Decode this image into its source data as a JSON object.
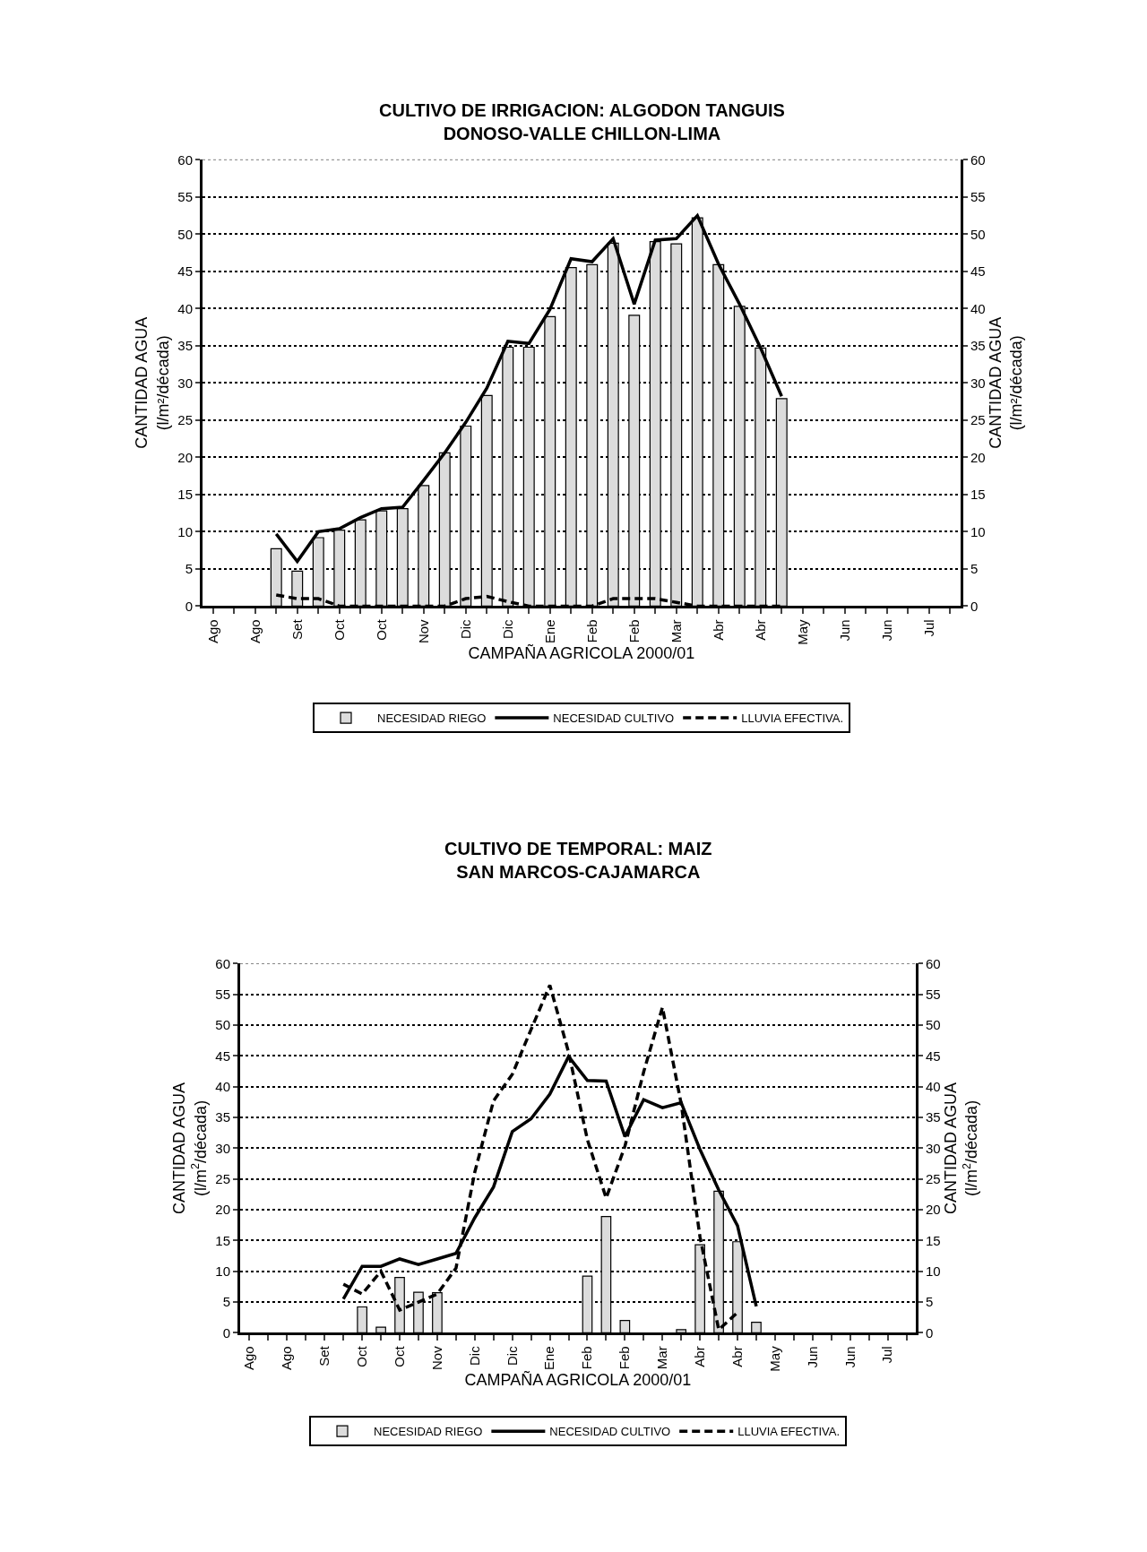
{
  "chart_data": [
    {
      "type": "bar",
      "title": "CULTIVO DE IRRIGACION: ALGODON TANGUIS\nDONOSO-VALLE CHILLON-LIMA",
      "xlabel": "CAMPAÑA AGRICOLA 2000/01",
      "ylabel": "CANTIDAD AGUA\n(l/m²/década)",
      "y2label": "CANTIDAD AGUA\n(l/m²/década)",
      "categories": [
        "Ago",
        null,
        "Ago",
        null,
        "Set",
        null,
        "Oct",
        null,
        "Oct",
        null,
        "Nov",
        null,
        "Dic",
        null,
        "Dic",
        null,
        "Ene",
        null,
        "Feb",
        null,
        "Feb",
        null,
        "Mar",
        null,
        "Abr",
        null,
        "Abr",
        null,
        "May",
        null,
        "Jun",
        null,
        "Jun",
        null,
        "Jul",
        null
      ],
      "series": [
        {
          "name": "NECESIDAD RIEGO",
          "color": "#dcdcdc",
          "values": [
            null,
            null,
            null,
            7.7,
            4.7,
            9.2,
            10.2,
            11.6,
            12.8,
            13.1,
            16.2,
            20.6,
            24.2,
            28.3,
            34.8,
            34.8,
            38.9,
            45.5,
            45.9,
            48.8,
            39.1,
            49.0,
            48.7,
            52.2,
            45.9,
            40.3,
            34.7,
            27.9,
            null,
            null,
            null,
            null,
            null,
            null,
            null,
            null
          ]
        },
        {
          "name": "NECESIDAD CULTIVO",
          "type": "line",
          "color": "#000000",
          "line_style": "solid",
          "values": [
            null,
            null,
            null,
            9.7,
            6.0,
            10.0,
            10.4,
            11.9,
            13.1,
            13.3,
            16.9,
            20.6,
            24.7,
            29.3,
            35.6,
            35.3,
            39.9,
            46.7,
            46.3,
            49.4,
            40.6,
            49.2,
            49.4,
            52.5,
            46.0,
            40.6,
            34.7,
            28.2,
            null,
            null,
            null,
            null,
            null,
            null,
            null,
            null
          ]
        },
        {
          "name": "LLUVIA EFECTIVA.",
          "type": "line",
          "color": "#000000",
          "line_style": "dashed",
          "values": [
            null,
            null,
            null,
            1.5,
            1.0,
            1.0,
            0,
            0,
            0,
            0,
            0,
            0,
            1.0,
            1.3,
            0.6,
            0,
            0,
            0,
            0,
            1.0,
            1.0,
            1.0,
            0.5,
            0,
            0,
            0,
            0,
            0,
            null,
            null,
            null,
            null,
            null,
            null,
            null,
            null
          ]
        }
      ],
      "ylim": [
        0,
        60
      ],
      "yticks": [
        0,
        5,
        10,
        15,
        20,
        25,
        30,
        35,
        40,
        45,
        50,
        55,
        60
      ],
      "y2lim": [
        0,
        60
      ],
      "y2ticks": [
        0,
        5,
        10,
        15,
        20,
        25,
        30,
        35,
        40,
        45,
        50,
        55,
        60
      ],
      "grid": "y",
      "legend": "bottom"
    },
    {
      "type": "bar",
      "title": "CULTIVO DE TEMPORAL: MAIZ\nSAN MARCOS-CAJAMARCA",
      "xlabel": "CAMPAÑA AGRICOLA 2000/01",
      "ylabel": "CANTIDAD AGUA\n(l/m$^{2}$/década)",
      "y2label": "CANTIDAD AGUA\n(l/m$^{2}$/década)",
      "categories": [
        "Ago",
        null,
        "Ago",
        null,
        "Set",
        null,
        "Oct",
        null,
        "Oct",
        null,
        "Nov",
        null,
        "Dic",
        null,
        "Dic",
        null,
        "Ene",
        null,
        "Feb",
        null,
        "Feb",
        null,
        "Mar",
        null,
        "Abr",
        null,
        "Abr",
        null,
        "May",
        null,
        "Jun",
        null,
        "Jun",
        null,
        "Jul",
        null
      ],
      "series": [
        {
          "name": "NECESIDAD RIEGO",
          "color": "#dcdcdc",
          "values": [
            null,
            null,
            null,
            null,
            null,
            null,
            4.2,
            0.9,
            9.0,
            6.6,
            6.5,
            null,
            null,
            null,
            null,
            null,
            null,
            null,
            9.2,
            18.9,
            2.0,
            null,
            null,
            0.5,
            14.3,
            23.0,
            14.8,
            1.7,
            null,
            null,
            null,
            null,
            null,
            null,
            null,
            null
          ]
        },
        {
          "name": "NECESIDAD CULTIVO",
          "type": "line",
          "color": "#000000",
          "line_style": "solid",
          "values": [
            null,
            null,
            null,
            null,
            null,
            5.5,
            10.8,
            10.8,
            12.0,
            11.1,
            12.0,
            12.9,
            18.7,
            23.7,
            32.7,
            34.8,
            38.8,
            44.9,
            41.0,
            40.9,
            31.9,
            37.9,
            36.6,
            37.4,
            29.8,
            23.2,
            17.4,
            4.3,
            null,
            null,
            null,
            null,
            null,
            null,
            null,
            null
          ]
        },
        {
          "name": "LLUVIA EFECTIVA.",
          "type": "line",
          "color": "#000000",
          "line_style": "dashed",
          "values": [
            null,
            null,
            null,
            null,
            null,
            7.9,
            6.3,
            10.0,
            3.7,
            5.0,
            6.3,
            10.5,
            26.1,
            37.7,
            42.0,
            49.3,
            56.5,
            45.6,
            31.4,
            21.9,
            30.3,
            42.4,
            52.9,
            37.2,
            15.6,
            0.5,
            3.3,
            null,
            null,
            null,
            null,
            null,
            null,
            null,
            null,
            null
          ]
        }
      ],
      "ylim": [
        0,
        60
      ],
      "yticks": [
        0,
        5,
        10,
        15,
        20,
        25,
        30,
        35,
        40,
        45,
        50,
        55,
        60
      ],
      "y2lim": [
        0,
        60
      ],
      "y2ticks": [
        0,
        5,
        10,
        15,
        20,
        25,
        30,
        35,
        40,
        45,
        50,
        55,
        60
      ],
      "grid": "y",
      "legend": "bottom"
    }
  ]
}
